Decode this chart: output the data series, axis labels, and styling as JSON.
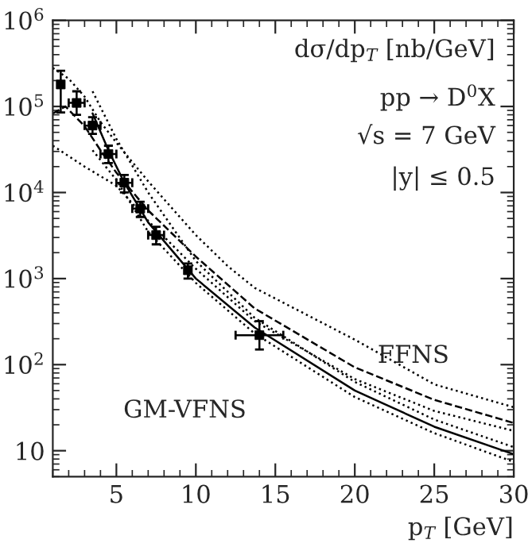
{
  "chart_data": {
    "type": "line",
    "xlabel": "p$_{T}$ [GeV]",
    "ylabel": "dσ/dp$_{T}$ [nb/GeV]",
    "annotations": [
      "pp → D$^{0}$X",
      "√s = 7 GeV",
      "|y| ≤ 0.5",
      "FFNS",
      "GM-VFNS"
    ],
    "log": "y",
    "xlim": [
      1,
      30
    ],
    "xticks": [
      5,
      10,
      15,
      20,
      25,
      30
    ],
    "ylim": [
      5,
      1000000
    ],
    "yticks": [
      {
        "value": 10,
        "label": "10"
      },
      {
        "value": 100,
        "label": "10$^{2}$"
      },
      {
        "value": 1000,
        "label": "10$^{3}$"
      },
      {
        "value": 10000,
        "label": "10$^{4}$"
      },
      {
        "value": 100000,
        "label": "10$^{5}$"
      },
      {
        "value": 1000000,
        "label": "10$^{6}$"
      }
    ],
    "grid": false,
    "legend": false,
    "series": [
      {
        "line_style": "dotted",
        "color": "#000000",
        "x": [
          1,
          2,
          3,
          4,
          5,
          7,
          10,
          12,
          13.7,
          20,
          25,
          30
        ],
        "values": [
          280000,
          210000,
          130000,
          66000,
          38000,
          13500,
          3200,
          1400,
          780,
          195,
          59,
          32
        ]
      },
      {
        "line_style": "dashed",
        "color": "#000000",
        "x": [
          1,
          1.8,
          3,
          4,
          5,
          7,
          10,
          13.7,
          20,
          25,
          30
        ],
        "values": [
          83000,
          100000,
          59000,
          31000,
          17000,
          6200,
          1800,
          450,
          93,
          39,
          21
        ]
      },
      {
        "line_style": "dotted",
        "color": "#000000",
        "x": [
          1,
          3,
          5,
          7,
          10,
          13.7,
          20,
          25,
          30
        ],
        "values": [
          35000,
          20000,
          12000,
          4700,
          1300,
          320,
          68,
          29,
          17
        ]
      },
      {
        "line_style": "dotted",
        "color": "#000000",
        "x": [
          3.5,
          5,
          7,
          10,
          13.7,
          20,
          25,
          30
        ],
        "values": [
          150000,
          42000,
          10000,
          1600,
          350,
          63,
          23,
          11
        ]
      },
      {
        "line_style": "solid",
        "color": "#000000",
        "x": [
          3.5,
          4.5,
          5.5,
          7,
          10,
          13.7,
          20,
          25,
          30
        ],
        "values": [
          83000,
          31000,
          13000,
          4500,
          1000,
          270,
          50,
          19,
          9.1
        ]
      },
      {
        "line_style": "dotted",
        "color": "#000000",
        "x": [
          3.5,
          5,
          7,
          10,
          13.7,
          20,
          25,
          30
        ],
        "values": [
          31000,
          14000,
          3500,
          890,
          230,
          42,
          16,
          7.4
        ]
      },
      {
        "type": "scatter",
        "marker": "square",
        "color": "#000000",
        "x": [
          1.5,
          2.5,
          3.5,
          4.5,
          5.5,
          6.5,
          7.5,
          9.5,
          14
        ],
        "values": [
          180000,
          110000,
          60000,
          28000,
          13000,
          6500,
          3200,
          1250,
          220
        ],
        "errors": [
          [
            85000,
            260000
          ],
          [
            80000,
            150000
          ],
          [
            48000,
            75000
          ],
          [
            22000,
            35000
          ],
          [
            10000,
            16000
          ],
          [
            5200,
            7800
          ],
          [
            2500,
            4000
          ],
          [
            1000,
            1500
          ],
          [
            150,
            320
          ]
        ],
        "xerrors": [
          null,
          0.5,
          0.5,
          0.5,
          0.5,
          0.5,
          0.5,
          null,
          [
            12.5,
            15.5
          ]
        ]
      }
    ]
  }
}
